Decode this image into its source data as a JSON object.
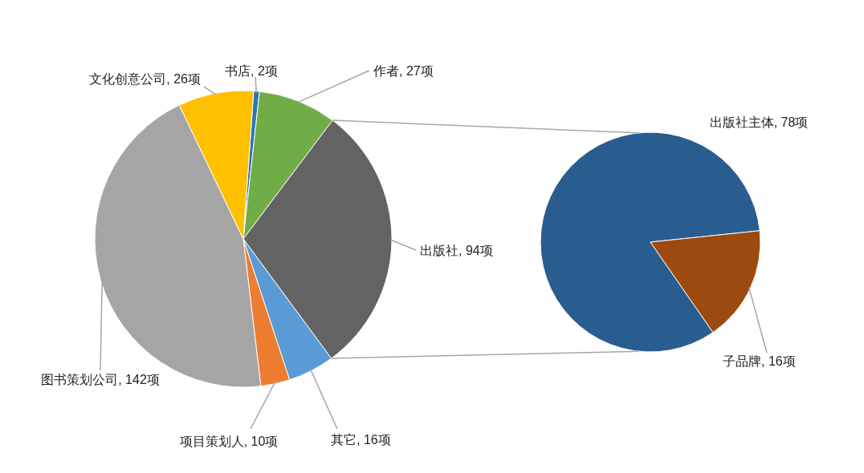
{
  "chart_data": [
    {
      "type": "pie",
      "categories": [
        "书店",
        "作者",
        "出版社",
        "其它",
        "项目策划人",
        "图书策划公司",
        "文化创意公司"
      ],
      "values": [
        2,
        27,
        94,
        16,
        10,
        142,
        26
      ],
      "value_labels": [
        "2项",
        "27项",
        "94项",
        "16项",
        "10项",
        "142项",
        "26项"
      ],
      "colors": [
        "#2e75b6",
        "#70ad47",
        "#636363",
        "#5b9bd5",
        "#ed7d31",
        "#a5a5a5",
        "#ffc000"
      ]
    },
    {
      "type": "pie",
      "categories": [
        "出版社主体",
        "子品牌"
      ],
      "values": [
        78,
        16
      ],
      "value_labels": [
        "78项",
        "16项"
      ],
      "colors": [
        "#2a5d8f",
        "#9c4a0f"
      ]
    }
  ]
}
